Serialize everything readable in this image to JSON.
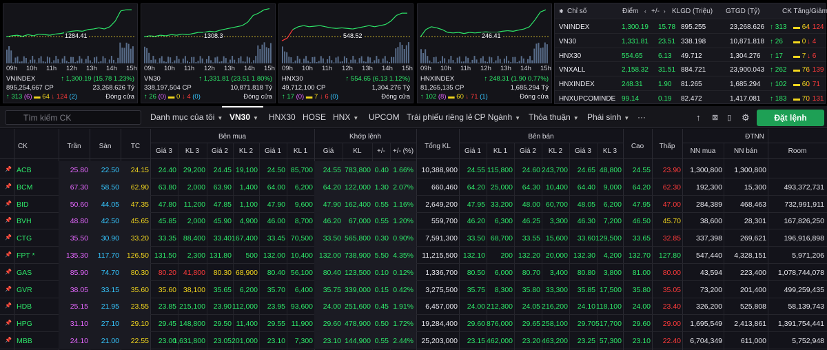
{
  "charts": [
    {
      "name": "VNINDEX",
      "ref": "1284.41",
      "vol": "895,254,667 CP",
      "val": "23,268.626 Tỷ",
      "point": "1,300.19 (15.78 1.23%)",
      "adv": "313",
      "adv_c": "6",
      "unch": "64",
      "dec": "124",
      "dec_c": "2",
      "status": "Đóng cửa",
      "trend": [
        0.42,
        0.44,
        0.45,
        0.43,
        0.46,
        0.44,
        0.47,
        0.46,
        0.45,
        0.47,
        0.48,
        0.5,
        0.52,
        0.53,
        0.52,
        0.55,
        0.56,
        0.58,
        0.56,
        0.6,
        0.7,
        0.88,
        0.9,
        0.9
      ]
    },
    {
      "name": "VN30",
      "ref": "1308.3",
      "vol": "338,197,504 CP",
      "val": "10,871.818 Tỷ",
      "point": "1,331.81 (23.51 1.80%)",
      "adv": "26",
      "adv_c": "0",
      "unch": "0",
      "dec": "4",
      "dec_c": "0",
      "status": "Đóng cửa",
      "trend": [
        0.42,
        0.44,
        0.43,
        0.45,
        0.44,
        0.46,
        0.45,
        0.47,
        0.46,
        0.48,
        0.5,
        0.5,
        0.52,
        0.51,
        0.54,
        0.56,
        0.58,
        0.6,
        0.62,
        0.68,
        0.8,
        0.84,
        0.9,
        0.92
      ]
    },
    {
      "name": "HNX30",
      "ref": "548.52",
      "vol": "49,712,100 CP",
      "val": "1,304.276 Tỷ",
      "point": "554.65 (6.13 1.12%)",
      "adv": "17",
      "adv_c": "0",
      "unch": "7",
      "dec": "6",
      "dec_c": "0",
      "status": "Đóng cửa",
      "trend": [
        0.35,
        0.4,
        0.55,
        0.6,
        0.62,
        0.6,
        0.61,
        0.62,
        0.6,
        0.58,
        0.57,
        0.58,
        0.57,
        0.56,
        0.58,
        0.6,
        0.62,
        0.6,
        0.62,
        0.64,
        0.7,
        0.8,
        0.84,
        0.84
      ]
    },
    {
      "name": "HNXINDEX",
      "ref": "246.41",
      "vol": "81,265,135 CP",
      "val": "1,685.294 Tỷ",
      "point": "248.31 (1.90 0.77%)",
      "adv": "102",
      "adv_c": "8",
      "unch": "60",
      "dec": "71",
      "dec_c": "1",
      "status": "Đóng cửa",
      "trend": [
        0.42,
        0.55,
        0.6,
        0.58,
        0.55,
        0.5,
        0.49,
        0.5,
        0.48,
        0.5,
        0.49,
        0.5,
        0.51,
        0.5,
        0.5,
        0.52,
        0.53,
        0.52,
        0.54,
        0.56,
        0.6,
        0.72,
        0.86,
        0.9
      ]
    }
  ],
  "axis_ticks": [
    "09h",
    "10h",
    "11h",
    "12h",
    "13h",
    "14h",
    "15h"
  ],
  "summary": {
    "headers": {
      "idx": "Chỉ số",
      "pt": "Điểm",
      "chg": "+/-",
      "vol": "KLGD (Triệu)",
      "val": "GTGD (Tỷ)",
      "br": "CK Tăng/Giảm"
    },
    "rows": [
      {
        "n": "VNINDEX",
        "pt": "1,300.19",
        "chg": "15.78",
        "vol": "895.255",
        "val": "23,268.626",
        "up": "313",
        "mid": "64",
        "dn": "124"
      },
      {
        "n": "VN30",
        "pt": "1,331.81",
        "chg": "23.51",
        "vol": "338.198",
        "val": "10,871.818",
        "up": "26",
        "mid": "0",
        "dn": "4"
      },
      {
        "n": "HNX30",
        "pt": "554.65",
        "chg": "6.13",
        "vol": "49.712",
        "val": "1,304.276",
        "up": "17",
        "mid": "7",
        "dn": "6"
      },
      {
        "n": "VNXALL",
        "pt": "2,158.32",
        "chg": "31.51",
        "vol": "884.721",
        "val": "23,900.043",
        "up": "262",
        "mid": "76",
        "dn": "139"
      },
      {
        "n": "HNXINDEX",
        "pt": "248.31",
        "chg": "1.90",
        "vol": "81.265",
        "val": "1,685.294",
        "up": "102",
        "mid": "60",
        "dn": "71"
      },
      {
        "n": "HNXUPCOMINDE",
        "pt": "99.14",
        "chg": "0.19",
        "vol": "82.472",
        "val": "1,417.081",
        "up": "183",
        "mid": "70",
        "dn": "131"
      }
    ]
  },
  "toolbar": {
    "search_placeholder": "Tìm kiếm CK",
    "tabs": [
      "Danh mục của tôi",
      "VN30",
      "HNX30",
      "HOSE",
      "HNX",
      "UPCOM",
      "Trái phiếu riêng lẻ",
      "CP Ngành",
      "Thỏa thuận",
      "Phái sinh",
      "···"
    ],
    "order_label": "Đặt lệnh"
  },
  "table": {
    "h1": {
      "ck": "CK",
      "ceil": "Trần",
      "floor": "Sàn",
      "ref": "TC",
      "buy": "Bên mua",
      "match": "Khớp lệnh",
      "total": "Tổng KL",
      "sell": "Bên bán",
      "hi": "Cao",
      "lo": "Thấp",
      "fr": "ĐTNN"
    },
    "h2": [
      "Giá 3",
      "KL 3",
      "Giá 2",
      "KL 2",
      "Giá 1",
      "KL 1",
      "Giá",
      "KL",
      "+/-",
      "+/- (%)",
      "Giá 1",
      "KL 1",
      "Giá 2",
      "KL 2",
      "Giá 3",
      "KL 3",
      "NN mua",
      "NN bán",
      "Room"
    ],
    "rows": [
      {
        "s": "ACB",
        "c": "25.80",
        "f": "22.50",
        "r": "24.15",
        "v": [
          "24.40",
          "29,200",
          "24.45",
          "19,100",
          "24.50",
          "85,700",
          "24.55",
          "783,800",
          "0.40",
          "1.66%",
          "10,388,900",
          "24.55",
          "115,800",
          "24.60",
          "243,700",
          "24.65",
          "48,800",
          "24.55",
          "23.90",
          "1,300,800",
          "1,300,800",
          ""
        ]
      },
      {
        "s": "BCM",
        "c": "67.30",
        "f": "58.50",
        "r": "62.90",
        "v": [
          "63.80",
          "2,000",
          "63.90",
          "1,400",
          "64.00",
          "6,200",
          "64.20",
          "122,000",
          "1.30",
          "2.07%",
          "660,460",
          "64.20",
          "25,000",
          "64.30",
          "10,400",
          "64.40",
          "9,000",
          "64.20",
          "62.30",
          "192,300",
          "15,300",
          "493,372,731"
        ]
      },
      {
        "s": "BID",
        "c": "50.60",
        "f": "44.05",
        "r": "47.35",
        "v": [
          "47.80",
          "11,200",
          "47.85",
          "1,100",
          "47.90",
          "9,600",
          "47.90",
          "162,400",
          "0.55",
          "1.16%",
          "2,649,200",
          "47.95",
          "33,200",
          "48.00",
          "60,700",
          "48.05",
          "6,200",
          "47.95",
          "47.00",
          "284,389",
          "468,463",
          "732,991,911"
        ]
      },
      {
        "s": "BVH",
        "c": "48.80",
        "f": "42.50",
        "r": "45.65",
        "v": [
          "45.85",
          "2,000",
          "45.90",
          "4,900",
          "46.00",
          "8,700",
          "46.20",
          "67,000",
          "0.55",
          "1.20%",
          "559,700",
          "46.20",
          "6,300",
          "46.25",
          "3,300",
          "46.30",
          "7,200",
          "46.50",
          "45.70",
          "38,600",
          "28,301",
          "167,826,250"
        ]
      },
      {
        "s": "CTG",
        "c": "35.50",
        "f": "30.90",
        "r": "33.20",
        "v": [
          "33.35",
          "88,400",
          "33.40",
          "167,400",
          "33.45",
          "70,500",
          "33.50",
          "565,800",
          "0.30",
          "0.90%",
          "7,591,300",
          "33.50",
          "68,700",
          "33.55",
          "15,600",
          "33.60",
          "129,500",
          "33.65",
          "32.85",
          "337,398",
          "269,621",
          "196,916,898"
        ]
      },
      {
        "s": "FPT *",
        "c": "135.30",
        "f": "117.70",
        "r": "126.50",
        "v": [
          "131.50",
          "2,300",
          "131.80",
          "500",
          "132.00",
          "10,400",
          "132.00",
          "738,900",
          "5.50",
          "4.35%",
          "11,215,500",
          "132.10",
          "200",
          "132.20",
          "20,000",
          "132.30",
          "4,200",
          "132.70",
          "127.80",
          "547,440",
          "4,328,151",
          "5,971,206"
        ]
      },
      {
        "s": "GAS",
        "c": "85.90",
        "f": "74.70",
        "r": "80.30",
        "v": [
          "80.20",
          "41,800",
          "80.30",
          "68,900",
          "80.40",
          "56,100",
          "80.40",
          "123,500",
          "0.10",
          "0.12%",
          "1,336,700",
          "80.50",
          "6,000",
          "80.70",
          "3,400",
          "80.80",
          "3,800",
          "81.00",
          "80.00",
          "43,594",
          "223,400",
          "1,078,744,078"
        ]
      },
      {
        "s": "GVR",
        "c": "38.05",
        "f": "33.15",
        "r": "35.60",
        "v": [
          "35.60",
          "38,100",
          "35.65",
          "6,200",
          "35.70",
          "6,400",
          "35.75",
          "339,000",
          "0.15",
          "0.42%",
          "3,275,500",
          "35.75",
          "8,300",
          "35.80",
          "33,300",
          "35.85",
          "17,500",
          "35.80",
          "35.05",
          "73,200",
          "201,400",
          "499,259,435"
        ]
      },
      {
        "s": "HDB",
        "c": "25.15",
        "f": "21.95",
        "r": "23.55",
        "v": [
          "23.85",
          "215,100",
          "23.90",
          "112,000",
          "23.95",
          "93,600",
          "24.00",
          "251,600",
          "0.45",
          "1.91%",
          "6,457,000",
          "24.00",
          "212,300",
          "24.05",
          "216,200",
          "24.10",
          "118,100",
          "24.00",
          "23.40",
          "326,200",
          "525,808",
          "58,139,743"
        ]
      },
      {
        "s": "HPG",
        "c": "31.10",
        "f": "27.10",
        "r": "29.10",
        "v": [
          "29.45",
          "148,800",
          "29.50",
          "11,400",
          "29.55",
          "11,900",
          "29.60",
          "478,900",
          "0.50",
          "1.72%",
          "19,284,400",
          "29.60",
          "876,000",
          "29.65",
          "258,100",
          "29.70",
          "517,700",
          "29.60",
          "29.00",
          "1,695,549",
          "2,413,861",
          "1,391,754,441"
        ]
      },
      {
        "s": "MBB",
        "c": "24.10",
        "f": "21.00",
        "r": "22.55",
        "v": [
          "23.00",
          "1,631,800",
          "23.05",
          "201,000",
          "23.10",
          "7,300",
          "23.10",
          "144,900",
          "0.55",
          "2.44%",
          "25,203,000",
          "23.15",
          "462,000",
          "23.20",
          "463,200",
          "23.25",
          "57,300",
          "23.10",
          "22.40",
          "6,704,349",
          "611,000",
          "5,752,948"
        ]
      }
    ],
    "colors": {
      "ACB": [
        "up",
        "up",
        "up",
        "up",
        "up",
        "up",
        "up",
        "up",
        "up",
        "up",
        "wh",
        "up",
        "up",
        "up",
        "up",
        "up",
        "up",
        "up",
        "dn",
        "wh",
        "wh",
        "wh"
      ],
      "BCM": [
        "up",
        "up",
        "up",
        "up",
        "up",
        "up",
        "up",
        "up",
        "up",
        "up",
        "wh",
        "up",
        "up",
        "up",
        "up",
        "up",
        "up",
        "up",
        "dn",
        "wh",
        "wh",
        "wh"
      ],
      "BID": [
        "up",
        "up",
        "up",
        "up",
        "up",
        "up",
        "up",
        "up",
        "up",
        "up",
        "wh",
        "up",
        "up",
        "up",
        "up",
        "up",
        "up",
        "up",
        "dn",
        "wh",
        "wh",
        "wh"
      ],
      "BVH": [
        "up",
        "up",
        "up",
        "up",
        "up",
        "up",
        "up",
        "up",
        "up",
        "up",
        "wh",
        "up",
        "up",
        "up",
        "up",
        "up",
        "up",
        "up",
        "ref",
        "wh",
        "wh",
        "wh"
      ],
      "CTG": [
        "up",
        "up",
        "up",
        "up",
        "up",
        "up",
        "up",
        "up",
        "up",
        "up",
        "wh",
        "up",
        "up",
        "up",
        "up",
        "up",
        "up",
        "up",
        "dn",
        "wh",
        "wh",
        "wh"
      ],
      "FPT *": [
        "up",
        "up",
        "up",
        "up",
        "up",
        "up",
        "up",
        "up",
        "up",
        "up",
        "wh",
        "up",
        "up",
        "up",
        "up",
        "up",
        "up",
        "up",
        "up",
        "wh",
        "wh",
        "wh"
      ],
      "GAS": [
        "dn",
        "dn",
        "ref",
        "ref",
        "up",
        "up",
        "up",
        "up",
        "up",
        "up",
        "wh",
        "up",
        "up",
        "up",
        "up",
        "up",
        "up",
        "up",
        "dn",
        "wh",
        "wh",
        "wh"
      ],
      "GVR": [
        "ref",
        "ref",
        "up",
        "up",
        "up",
        "up",
        "up",
        "up",
        "up",
        "up",
        "wh",
        "up",
        "up",
        "up",
        "up",
        "up",
        "up",
        "up",
        "dn",
        "wh",
        "wh",
        "wh"
      ],
      "HDB": [
        "up",
        "up",
        "up",
        "up",
        "up",
        "up",
        "up",
        "up",
        "up",
        "up",
        "wh",
        "up",
        "up",
        "up",
        "up",
        "up",
        "up",
        "up",
        "dn",
        "wh",
        "wh",
        "wh"
      ],
      "HPG": [
        "up",
        "up",
        "up",
        "up",
        "up",
        "up",
        "up",
        "up",
        "up",
        "up",
        "wh",
        "up",
        "up",
        "up",
        "up",
        "up",
        "up",
        "up",
        "dn",
        "wh",
        "wh",
        "wh"
      ],
      "MBB": [
        "up",
        "up",
        "up",
        "up",
        "up",
        "up",
        "up",
        "up",
        "up",
        "up",
        "wh",
        "up",
        "up",
        "up",
        "up",
        "up",
        "up",
        "up",
        "dn",
        "wh",
        "wh",
        "wh"
      ]
    }
  }
}
